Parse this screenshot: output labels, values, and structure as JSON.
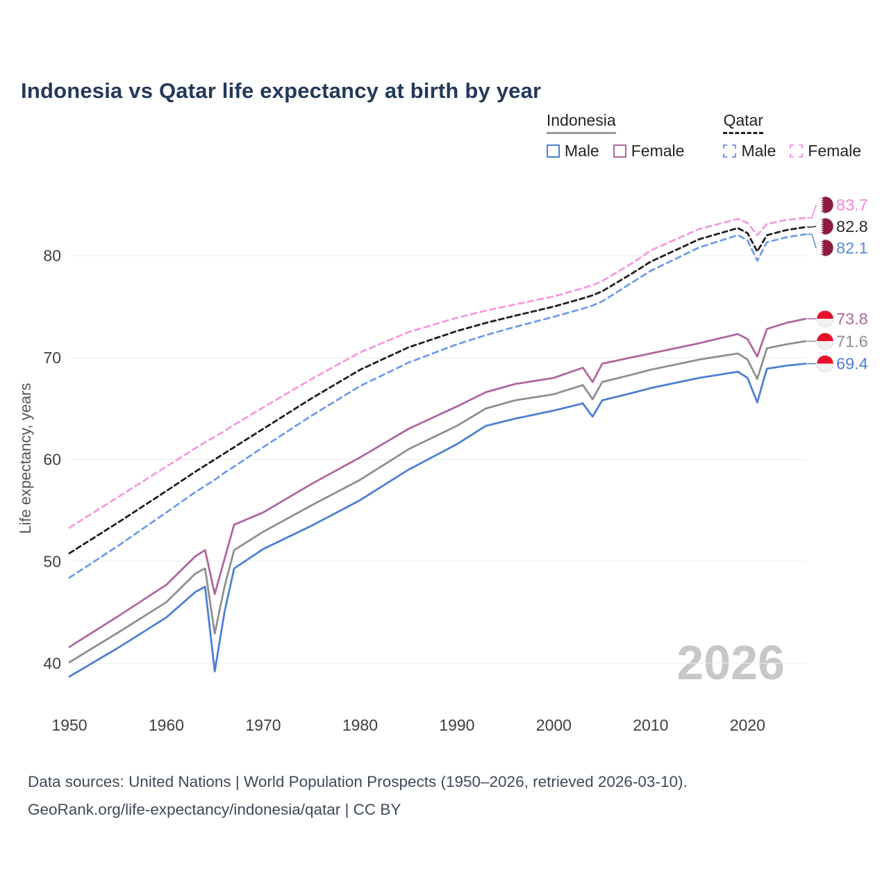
{
  "title": "Indonesia vs Qatar life expectancy at birth by year",
  "legend": {
    "groups": [
      {
        "label": "Indonesia",
        "line_style": "solid",
        "line_color": "#9a9a9a",
        "items": [
          {
            "label": "Male",
            "color": "#4d7fd2",
            "dashed": false
          },
          {
            "label": "Female",
            "color": "#b0669e",
            "dashed": false
          }
        ]
      },
      {
        "label": "Qatar",
        "line_style": "dashed",
        "line_color": "#1f1f1f",
        "items": [
          {
            "label": "Male",
            "color": "#6f9de6",
            "dashed": true
          },
          {
            "label": "Female",
            "color": "#f59ade",
            "dashed": true
          }
        ]
      }
    ]
  },
  "watermark": "2026",
  "footer": {
    "line1": "Data sources: United Nations | World Population Prospects (1950–2026, retrieved 2026-03-10).",
    "line2": "GeoRank.org/life-expectancy/indonesia/qatar | CC BY"
  },
  "chart_data": {
    "type": "line",
    "title": "Indonesia vs Qatar life expectancy at birth by year",
    "xlabel": "",
    "ylabel": "Life expectancy, years",
    "x_axis": {
      "ticks": [
        1950,
        1960,
        1970,
        1980,
        1990,
        2000,
        2010,
        2020
      ],
      "min": 1950,
      "max": 2026
    },
    "y_axis": {
      "label": "Life expectancy, years",
      "ticks": [
        40,
        50,
        60,
        70,
        80
      ],
      "min": 38,
      "max": 85,
      "grid": true
    },
    "x": [
      1950,
      1955,
      1960,
      1963,
      1964,
      1965,
      1966,
      1967,
      1970,
      1975,
      1980,
      1985,
      1990,
      1993,
      1996,
      2000,
      2003,
      2004,
      2005,
      2008,
      2010,
      2015,
      2019,
      2020,
      2021,
      2022,
      2024,
      2026
    ],
    "series": [
      {
        "name": "Qatar Female",
        "country": "Qatar",
        "sex": "Female",
        "color": "#f59ade",
        "dashed": true,
        "values": [
          53.3,
          56.3,
          59.3,
          61.1,
          61.7,
          62.2,
          62.8,
          63.4,
          65.1,
          67.9,
          70.5,
          72.5,
          73.9,
          74.6,
          75.2,
          76.0,
          76.8,
          77.1,
          77.5,
          79.2,
          80.5,
          82.6,
          83.6,
          83.2,
          82.0,
          83.1,
          83.5,
          83.7
        ]
      },
      {
        "name": "Qatar Both sexes",
        "country": "Qatar",
        "sex": "Both",
        "color": "#1f1f1f",
        "dashed": true,
        "values": [
          50.8,
          53.8,
          56.9,
          58.8,
          59.4,
          60.0,
          60.6,
          61.2,
          63.0,
          66.0,
          68.8,
          71.0,
          72.6,
          73.4,
          74.1,
          75.0,
          75.8,
          76.1,
          76.5,
          78.2,
          79.4,
          81.6,
          82.7,
          82.2,
          80.4,
          82.0,
          82.5,
          82.8
        ]
      },
      {
        "name": "Qatar Male",
        "country": "Qatar",
        "sex": "Male",
        "color": "#6f9de6",
        "dashed": true,
        "values": [
          48.4,
          51.5,
          54.8,
          56.8,
          57.4,
          58.0,
          58.7,
          59.3,
          61.2,
          64.3,
          67.2,
          69.5,
          71.3,
          72.2,
          73.0,
          74.0,
          74.8,
          75.1,
          75.5,
          77.3,
          78.5,
          80.8,
          82.0,
          81.5,
          79.5,
          81.3,
          81.8,
          82.1
        ]
      },
      {
        "name": "Indonesia Female",
        "country": "Indonesia",
        "sex": "Female",
        "color": "#b0669e",
        "dashed": false,
        "values": [
          41.6,
          44.6,
          47.7,
          50.5,
          51.1,
          46.8,
          50.2,
          53.6,
          54.8,
          57.6,
          60.2,
          63.0,
          65.2,
          66.6,
          67.4,
          68.0,
          69.0,
          67.6,
          69.4,
          70.0,
          70.4,
          71.4,
          72.3,
          71.8,
          70.1,
          72.8,
          73.4,
          73.8
        ]
      },
      {
        "name": "Indonesia Both sexes",
        "country": "Indonesia",
        "sex": "Both",
        "color": "#8f8f8f",
        "dashed": false,
        "values": [
          40.1,
          43.0,
          46.0,
          48.8,
          49.3,
          42.9,
          47.5,
          51.1,
          52.9,
          55.5,
          58.0,
          61.0,
          63.3,
          65.0,
          65.8,
          66.4,
          67.3,
          65.9,
          67.6,
          68.3,
          68.8,
          69.8,
          70.4,
          69.8,
          67.9,
          70.9,
          71.3,
          71.6
        ]
      },
      {
        "name": "Indonesia Male",
        "country": "Indonesia",
        "sex": "Male",
        "color": "#4d7fd2",
        "dashed": false,
        "values": [
          38.7,
          41.5,
          44.5,
          47.0,
          47.5,
          39.2,
          45.0,
          49.3,
          51.2,
          53.5,
          56.0,
          59.0,
          61.5,
          63.3,
          64.0,
          64.8,
          65.5,
          64.2,
          65.8,
          66.5,
          67.0,
          68.0,
          68.6,
          68.0,
          65.6,
          68.9,
          69.2,
          69.4
        ]
      }
    ],
    "end_labels": [
      {
        "text": "83.7",
        "flag": "qatar",
        "color": "#f285d9"
      },
      {
        "text": "82.8",
        "flag": "qatar",
        "color": "#2b2b2b"
      },
      {
        "text": "82.1",
        "flag": "qatar",
        "color": "#5b8ad4"
      },
      {
        "text": "73.8",
        "flag": "indonesia",
        "color": "#b0669e"
      },
      {
        "text": "71.6",
        "flag": "indonesia",
        "color": "#8f8f8f"
      },
      {
        "text": "69.4",
        "flag": "indonesia",
        "color": "#4d7fd2"
      }
    ],
    "legend_position": "top-right"
  }
}
